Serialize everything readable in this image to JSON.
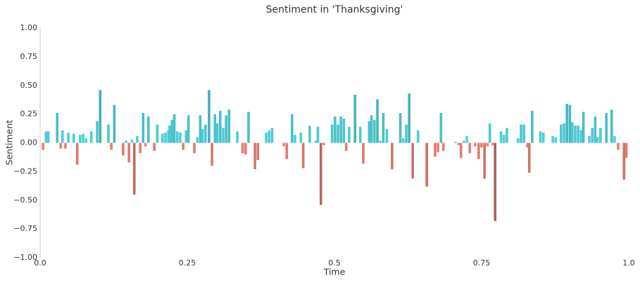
{
  "chart_data": {
    "type": "bar",
    "title": "Sentiment in 'Thanksgiving'",
    "xlabel": "Time",
    "ylabel": "Sentiment",
    "x": [
      0.005,
      0.01,
      0.014,
      0.029,
      0.035,
      0.038,
      0.043,
      0.048,
      0.057,
      0.063,
      0.068,
      0.073,
      0.078,
      0.087,
      0.097,
      0.102,
      0.116,
      0.121,
      0.126,
      0.141,
      0.146,
      0.151,
      0.156,
      0.16,
      0.165,
      0.17,
      0.175,
      0.179,
      0.184,
      0.194,
      0.199,
      0.208,
      0.213,
      0.218,
      0.22,
      0.224,
      0.228,
      0.233,
      0.238,
      0.243,
      0.248,
      0.252,
      0.262,
      0.267,
      0.272,
      0.276,
      0.281,
      0.287,
      0.292,
      0.297,
      0.301,
      0.306,
      0.311,
      0.316,
      0.321,
      0.335,
      0.344,
      0.349,
      0.354,
      0.365,
      0.37,
      0.384,
      0.389,
      0.394,
      0.414,
      0.419,
      0.428,
      0.433,
      0.443,
      0.447,
      0.458,
      0.468,
      0.472,
      0.477,
      0.482,
      0.496,
      0.501,
      0.506,
      0.511,
      0.516,
      0.52,
      0.525,
      0.535,
      0.544,
      0.549,
      0.559,
      0.563,
      0.568,
      0.573,
      0.578,
      0.583,
      0.589,
      0.598,
      0.612,
      0.617,
      0.622,
      0.627,
      0.633,
      0.642,
      0.657,
      0.671,
      0.676,
      0.681,
      0.685,
      0.706,
      0.711,
      0.715,
      0.72,
      0.725,
      0.73,
      0.739,
      0.745,
      0.75,
      0.755,
      0.76,
      0.764,
      0.769,
      0.773,
      0.783,
      0.788,
      0.793,
      0.812,
      0.817,
      0.822,
      0.828,
      0.831,
      0.836,
      0.85,
      0.855,
      0.871,
      0.876,
      0.885,
      0.89,
      0.895,
      0.9,
      0.904,
      0.909,
      0.914,
      0.919,
      0.923,
      0.933,
      0.938,
      0.943,
      0.947,
      0.952,
      0.962,
      0.971,
      0.976,
      0.982,
      0.992,
      0.996
    ],
    "values": [
      -0.06,
      0.1,
      0.1,
      0.26,
      -0.05,
      0.11,
      -0.05,
      0.09,
      0.08,
      -0.19,
      0.07,
      0.08,
      0.04,
      0.1,
      0.19,
      0.46,
      0.16,
      -0.06,
      0.33,
      -0.11,
      0.02,
      -0.17,
      0.03,
      -0.45,
      0.06,
      -0.09,
      0.26,
      -0.03,
      0.23,
      -0.07,
      0.16,
      0.08,
      0.09,
      0.11,
      0.15,
      0.2,
      0.25,
      0.1,
      0.09,
      -0.06,
      0.11,
      0.24,
      -0.09,
      0.05,
      0.24,
      0.12,
      0.16,
      0.46,
      -0.2,
      0.25,
      0.17,
      0.28,
      0.13,
      0.24,
      0.29,
      0.1,
      -0.09,
      -0.1,
      0.27,
      -0.23,
      -0.15,
      0.09,
      0.11,
      0.13,
      -0.03,
      -0.14,
      0.25,
      0.07,
      0.09,
      -0.22,
      0.15,
      0.02,
      0.14,
      -0.54,
      -0.02,
      0.16,
      0.23,
      0.16,
      0.23,
      0.21,
      -0.07,
      0.14,
      0.42,
      0.14,
      -0.18,
      0.19,
      0.24,
      0.2,
      0.38,
      0.02,
      0.26,
      0.12,
      -0.23,
      0.26,
      0.04,
      0.16,
      0.43,
      -0.31,
      0.11,
      -0.38,
      -0.12,
      -0.08,
      0.26,
      -0.07,
      0.01,
      -0.02,
      -0.13,
      0.02,
      0.06,
      -0.09,
      -0.03,
      -0.14,
      -0.04,
      -0.31,
      -0.03,
      0.17,
      -0.02,
      -0.68,
      0.1,
      0.07,
      0.13,
      0.04,
      0.16,
      0.16,
      -0.04,
      -0.26,
      0.28,
      0.1,
      0.09,
      0.06,
      0.05,
      0.16,
      0.17,
      0.34,
      0.33,
      0.18,
      0.15,
      0.15,
      0.11,
      0.27,
      0.06,
      0.13,
      0.23,
      0.05,
      0.13,
      0.26,
      0.29,
      0.06,
      -0.06,
      -0.32,
      -0.13
    ],
    "positive_color": "#4fd6df",
    "negative_color": "#ef7f72",
    "xlim": [
      0,
      1
    ],
    "xticks": [
      {
        "value": 0,
        "label": "0.0"
      },
      0.25,
      0.5,
      0.75,
      {
        "value": 1,
        "label": "1.0"
      }
    ],
    "ylim": [
      -1,
      1
    ],
    "yticks": [
      {
        "value": 1,
        "label": "1.00"
      },
      {
        "value": 0.75,
        "label": "0.75"
      },
      {
        "value": 0.5,
        "label": "0.50"
      },
      {
        "value": 0.25,
        "label": "0.25"
      },
      {
        "value": 0,
        "label": "0.00"
      },
      {
        "value": -0.25,
        "label": "−0.25"
      },
      {
        "value": -0.5,
        "label": "−0.50"
      },
      {
        "value": -0.75,
        "label": "−0.75"
      },
      {
        "value": -1,
        "label": "−1.00"
      }
    ],
    "grid": false
  }
}
